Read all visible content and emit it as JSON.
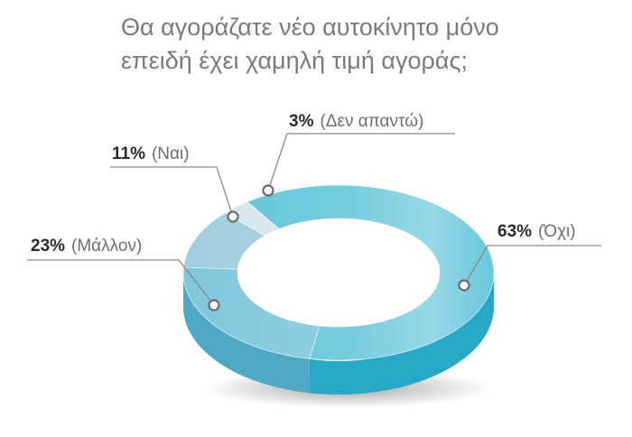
{
  "title_lines": [
    "Θα αγοράζατε νέο αυτοκίνητο μόνο",
    "επειδή έχει χαμηλή τιμή αγοράς;"
  ],
  "chart_data": {
    "type": "pie",
    "variant": "3d-donut",
    "title": "Θα αγοράζατε νέο αυτοκίνητο μόνο επειδή έχει χαμηλή τιμή αγοράς;",
    "categories": [
      "Όχι",
      "Μάλλον",
      "Ναι",
      "Δεν απαντώ"
    ],
    "values": [
      63,
      23,
      11,
      3
    ],
    "value_labels": [
      "63%",
      "23%",
      "11%",
      "3%"
    ],
    "category_labels": [
      "(Όχι)",
      "(Μάλλον)",
      "(Ναι)",
      "(Δεν απαντώ)"
    ],
    "colors": [
      "#5fc4d9",
      "#7fc7dc",
      "#9fcede",
      "#d5e6ec"
    ]
  }
}
